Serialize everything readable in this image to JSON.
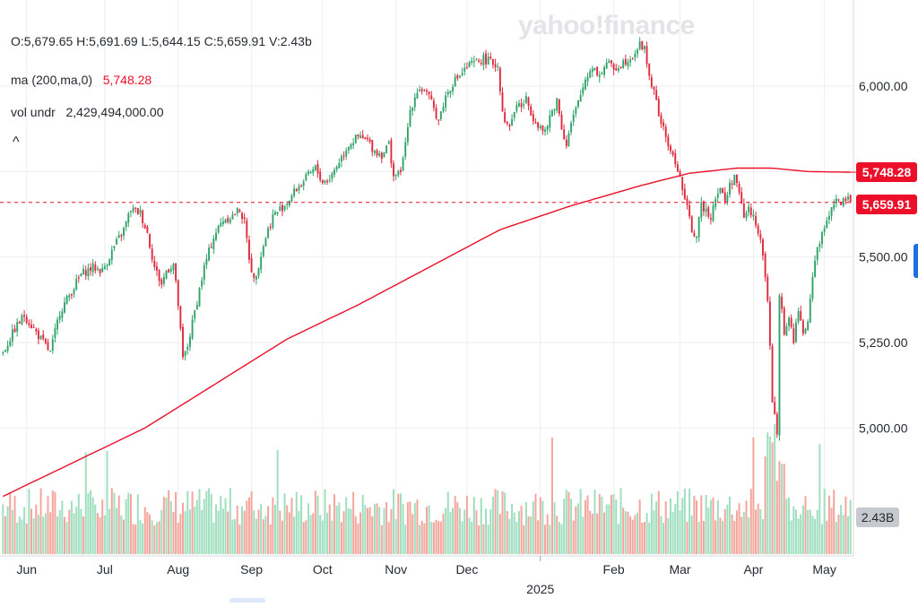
{
  "header": {
    "ohlc": "O:5,679.65   H:5,691.69   L:5,644.15   C:5,659.91   V:2.43b",
    "ma_label": "ma (200,ma,0)",
    "ma_value": "5,748.28",
    "vol_label": "vol undr",
    "vol_value": "2,429,494,000.00",
    "collapse_glyph": "^"
  },
  "watermark": "yahoo!finance",
  "price_tags": {
    "ma": "5,748.28",
    "close": "5,659.91",
    "volume": "2.43B"
  },
  "colors": {
    "up": "#2fa36b",
    "down": "#e0293c",
    "vol_up": "#9fdfc0",
    "vol_down": "#f4a59c",
    "ma": "#eb0f29",
    "grid": "#eceef1"
  },
  "chart_data": {
    "type": "candlestick",
    "period": "Daily, 2024-05-20 to 2025-05-07",
    "y_ticks": [
      "6,000.00",
      "5,750.00",
      "5,500.00",
      "5,250.00",
      "5,000.00"
    ],
    "ylim": [
      4830,
      6210
    ],
    "x_labels": [
      {
        "label": "Jun",
        "day": 10
      },
      {
        "label": "Jul",
        "day": 43
      },
      {
        "label": "Aug",
        "day": 74
      },
      {
        "label": "Sep",
        "day": 105
      },
      {
        "label": "Oct",
        "day": 135
      },
      {
        "label": "Nov",
        "day": 166
      },
      {
        "label": "Dec",
        "day": 196
      },
      {
        "label": "2025",
        "day": 227
      },
      {
        "label": "Feb",
        "day": 258
      },
      {
        "label": "Mar",
        "day": 286
      },
      {
        "label": "Apr",
        "day": 317
      },
      {
        "label": "May",
        "day": 347
      }
    ],
    "last_close": 5659.91,
    "ma200_last": 5748.28,
    "volume_last": "2.43B",
    "price_anchors": [
      [
        0,
        5220
      ],
      [
        5,
        5290
      ],
      [
        9,
        5330
      ],
      [
        14,
        5280
      ],
      [
        18,
        5240
      ],
      [
        20,
        5220
      ],
      [
        24,
        5340
      ],
      [
        29,
        5400
      ],
      [
        33,
        5450
      ],
      [
        38,
        5470
      ],
      [
        42,
        5460
      ],
      [
        47,
        5530
      ],
      [
        51,
        5580
      ],
      [
        54,
        5640
      ],
      [
        58,
        5630
      ],
      [
        61,
        5570
      ],
      [
        64,
        5470
      ],
      [
        67,
        5420
      ],
      [
        69,
        5460
      ],
      [
        72,
        5480
      ],
      [
        74,
        5360
      ],
      [
        76,
        5200
      ],
      [
        78,
        5240
      ],
      [
        81,
        5340
      ],
      [
        85,
        5470
      ],
      [
        89,
        5560
      ],
      [
        93,
        5610
      ],
      [
        97,
        5620
      ],
      [
        100,
        5640
      ],
      [
        102,
        5600
      ],
      [
        104,
        5500
      ],
      [
        106,
        5430
      ],
      [
        108,
        5480
      ],
      [
        111,
        5560
      ],
      [
        114,
        5620
      ],
      [
        117,
        5640
      ],
      [
        120,
        5660
      ],
      [
        124,
        5700
      ],
      [
        128,
        5730
      ],
      [
        132,
        5760
      ],
      [
        135,
        5720
      ],
      [
        138,
        5730
      ],
      [
        142,
        5780
      ],
      [
        146,
        5830
      ],
      [
        150,
        5850
      ],
      [
        154,
        5840
      ],
      [
        157,
        5810
      ],
      [
        160,
        5800
      ],
      [
        163,
        5830
      ],
      [
        165,
        5740
      ],
      [
        167,
        5740
      ],
      [
        169,
        5780
      ],
      [
        172,
        5930
      ],
      [
        175,
        5990
      ],
      [
        178,
        5990
      ],
      [
        181,
        5950
      ],
      [
        184,
        5900
      ],
      [
        187,
        5970
      ],
      [
        190,
        6010
      ],
      [
        194,
        6040
      ],
      [
        197,
        6060
      ],
      [
        200,
        6070
      ],
      [
        203,
        6080
      ],
      [
        206,
        6070
      ],
      [
        209,
        6060
      ],
      [
        211,
        5930
      ],
      [
        213,
        5880
      ],
      [
        215,
        5900
      ],
      [
        217,
        5950
      ],
      [
        219,
        5940
      ],
      [
        221,
        5960
      ],
      [
        224,
        5910
      ],
      [
        227,
        5880
      ],
      [
        229,
        5860
      ],
      [
        231,
        5910
      ],
      [
        234,
        5960
      ],
      [
        236,
        5880
      ],
      [
        238,
        5830
      ],
      [
        240,
        5890
      ],
      [
        243,
        5950
      ],
      [
        246,
        6020
      ],
      [
        249,
        6060
      ],
      [
        252,
        6030
      ],
      [
        255,
        6070
      ],
      [
        258,
        6050
      ],
      [
        262,
        6070
      ],
      [
        266,
        6090
      ],
      [
        269,
        6120
      ],
      [
        271,
        6110
      ],
      [
        273,
        6030
      ],
      [
        275,
        5980
      ],
      [
        277,
        5920
      ],
      [
        279,
        5870
      ],
      [
        281,
        5830
      ],
      [
        283,
        5790
      ],
      [
        285,
        5760
      ],
      [
        287,
        5700
      ],
      [
        289,
        5640
      ],
      [
        291,
        5580
      ],
      [
        293,
        5560
      ],
      [
        295,
        5650
      ],
      [
        297,
        5640
      ],
      [
        299,
        5620
      ],
      [
        301,
        5680
      ],
      [
        303,
        5700
      ],
      [
        305,
        5660
      ],
      [
        307,
        5710
      ],
      [
        309,
        5740
      ],
      [
        311,
        5680
      ],
      [
        313,
        5620
      ],
      [
        315,
        5640
      ],
      [
        317,
        5620
      ],
      [
        319,
        5580
      ],
      [
        321,
        5500
      ],
      [
        323,
        5380
      ],
      [
        325,
        5080
      ],
      [
        327,
        4980
      ],
      [
        328,
        5400
      ],
      [
        330,
        5280
      ],
      [
        332,
        5320
      ],
      [
        334,
        5260
      ],
      [
        336,
        5340
      ],
      [
        338,
        5280
      ],
      [
        340,
        5300
      ],
      [
        342,
        5450
      ],
      [
        344,
        5530
      ],
      [
        346,
        5560
      ],
      [
        348,
        5610
      ],
      [
        350,
        5650
      ],
      [
        352,
        5670
      ],
      [
        354,
        5650
      ],
      [
        356,
        5670
      ],
      [
        358,
        5660
      ]
    ],
    "ma200_anchors": [
      [
        0,
        4800
      ],
      [
        30,
        4900
      ],
      [
        60,
        5000
      ],
      [
        90,
        5130
      ],
      [
        120,
        5260
      ],
      [
        150,
        5360
      ],
      [
        180,
        5470
      ],
      [
        210,
        5580
      ],
      [
        240,
        5650
      ],
      [
        270,
        5710
      ],
      [
        290,
        5745
      ],
      [
        310,
        5760
      ],
      [
        325,
        5760
      ],
      [
        340,
        5750
      ],
      [
        358,
        5748
      ]
    ]
  }
}
